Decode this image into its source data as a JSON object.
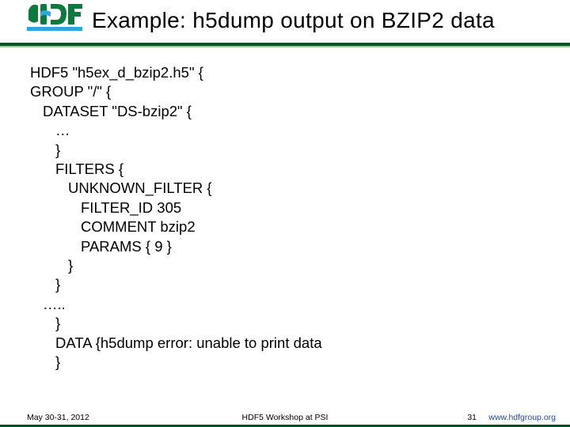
{
  "header": {
    "title": "Example: h5dump output on BZIP2 data",
    "logo": {
      "primary": "#0b7a3c",
      "accent": "#2aa7df"
    },
    "rule_dark": "#0b4f27",
    "rule_light": "#8fd08f"
  },
  "content": {
    "lines": [
      {
        "indent": 0,
        "text": "HDF5 \"h5ex_d_bzip2.h5\" {"
      },
      {
        "indent": 0,
        "text": "GROUP \"/\" {"
      },
      {
        "indent": 1,
        "text": "DATASET \"DS-bzip2\" {"
      },
      {
        "indent": 2,
        "text": "…"
      },
      {
        "indent": 2,
        "text": "}"
      },
      {
        "indent": 2,
        "text": "FILTERS {"
      },
      {
        "indent": 3,
        "text": "UNKNOWN_FILTER {"
      },
      {
        "indent": 4,
        "text": "FILTER_ID 305"
      },
      {
        "indent": 4,
        "text": "COMMENT bzip2"
      },
      {
        "indent": 4,
        "text": "PARAMS { 9 }"
      },
      {
        "indent": 3,
        "text": "}"
      },
      {
        "indent": 2,
        "text": "}"
      },
      {
        "indent": 1,
        "text": "….."
      },
      {
        "indent": 2,
        "text": "}"
      },
      {
        "indent": 2,
        "text": "DATA {h5dump error: unable to print data"
      },
      {
        "indent": 2,
        "text": " "
      },
      {
        "indent": 2,
        "text": "}"
      }
    ]
  },
  "footer": {
    "date": "May 30-31, 2012",
    "center": "HDF5 Workshop at PSI",
    "page": "31",
    "url": "www.hdfgroup.org",
    "bar_color": "#0b4f27"
  },
  "typography": {
    "title_fontsize": 28,
    "body_fontsize": 18.5,
    "footer_fontsize": 10.5
  }
}
